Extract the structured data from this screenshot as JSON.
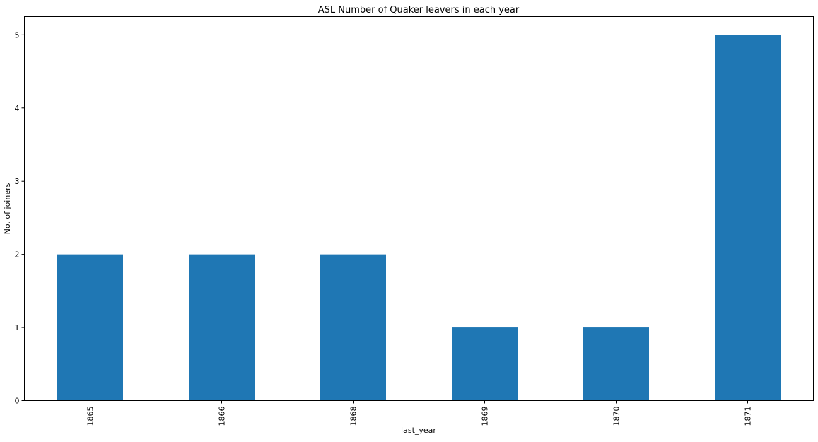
{
  "chart_data": {
    "type": "bar",
    "title": "ASL Number of Quaker leavers in each year",
    "xlabel": "last_year",
    "ylabel": "No. of joiners",
    "categories": [
      "1865",
      "1866",
      "1868",
      "1869",
      "1870",
      "1871"
    ],
    "values": [
      2,
      2,
      2,
      1,
      1,
      5
    ],
    "ylim": [
      0,
      5.25
    ],
    "yticks": [
      "0",
      "1",
      "2",
      "3",
      "4",
      "5"
    ],
    "grid": false,
    "legend": "none",
    "bar_color": "#1f77b4"
  }
}
